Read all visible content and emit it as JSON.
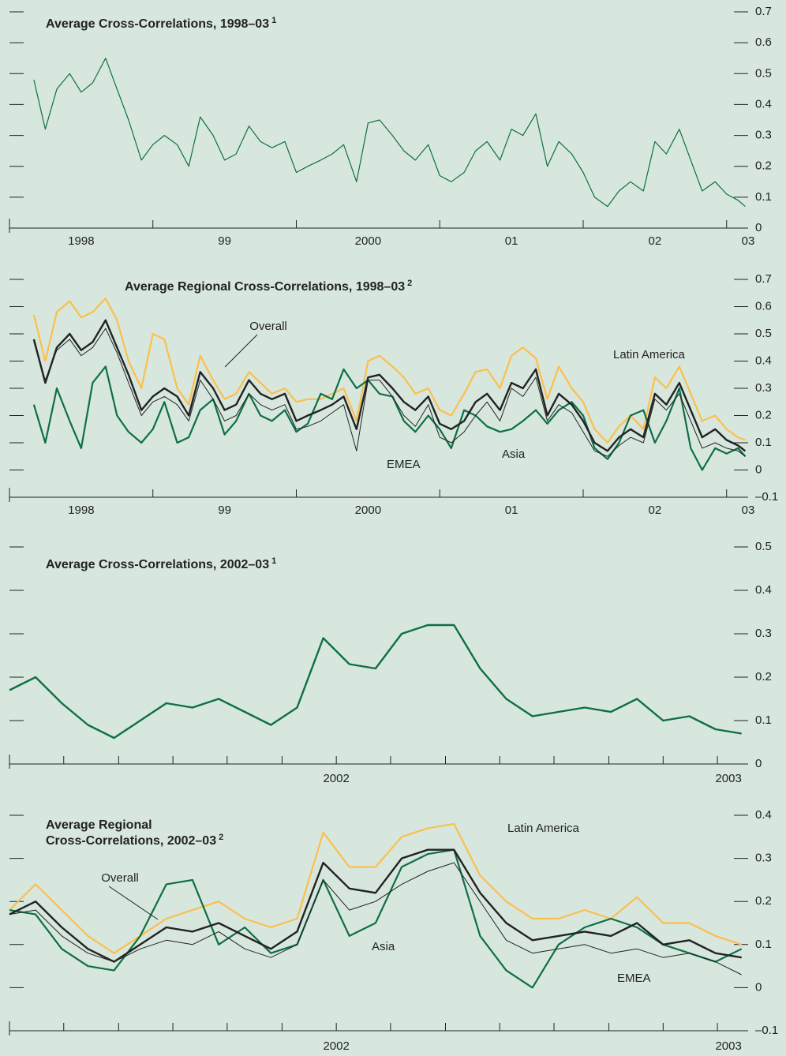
{
  "chart_data": [
    {
      "type": "line",
      "title": "Average Cross-Correlations, 1998–03",
      "title_note": "1",
      "x": [
        1998.17,
        1998.25,
        1998.33,
        1998.42,
        1998.5,
        1998.58,
        1998.67,
        1998.75,
        1998.83,
        1998.92,
        1999,
        1999.08,
        1999.17,
        1999.25,
        1999.33,
        1999.42,
        1999.5,
        1999.58,
        1999.67,
        1999.75,
        1999.83,
        1999.92,
        2000,
        2000.08,
        2000.17,
        2000.25,
        2000.33,
        2000.42,
        2000.5,
        2000.58,
        2000.67,
        2000.75,
        2000.83,
        2000.92,
        2001,
        2001.08,
        2001.17,
        2001.25,
        2001.33,
        2001.42,
        2001.5,
        2001.58,
        2001.67,
        2001.75,
        2001.83,
        2001.92,
        2002,
        2002.08,
        2002.17,
        2002.25,
        2002.33,
        2002.42,
        2002.5,
        2002.58,
        2002.67,
        2002.75,
        2002.83,
        2002.92,
        2003,
        2003.08,
        2003.13
      ],
      "series": [
        {
          "color": "#0e6f45",
          "width": 1.2,
          "values": [
            0.48,
            0.32,
            0.45,
            0.5,
            0.44,
            0.47,
            0.55,
            0.45,
            0.35,
            0.22,
            0.27,
            0.3,
            0.27,
            0.2,
            0.36,
            0.3,
            0.22,
            0.24,
            0.33,
            0.28,
            0.26,
            0.28,
            0.18,
            0.2,
            0.22,
            0.24,
            0.27,
            0.15,
            0.34,
            0.35,
            0.3,
            0.25,
            0.22,
            0.27,
            0.17,
            0.15,
            0.18,
            0.25,
            0.28,
            0.22,
            0.32,
            0.3,
            0.37,
            0.2,
            0.28,
            0.24,
            0.18,
            0.1,
            0.07,
            0.12,
            0.15,
            0.12,
            0.28,
            0.24,
            0.32,
            0.22,
            0.12,
            0.15,
            0.11,
            0.09,
            0.07
          ]
        }
      ],
      "xlim": [
        1998,
        2003.15
      ],
      "xticks": [
        1998,
        1999,
        2000,
        2001,
        2002,
        2003
      ],
      "xlabels": [
        {
          "value": 1998.5,
          "label": "1998"
        },
        {
          "value": 1999.5,
          "label": "99"
        },
        {
          "value": 2000.5,
          "label": "2000"
        },
        {
          "value": 2001.5,
          "label": "01"
        },
        {
          "value": 2002.5,
          "label": "02"
        },
        {
          "value": 2003.15,
          "label": "03"
        }
      ],
      "ylim": [
        0,
        0.7
      ],
      "yticks": [
        0,
        0.1,
        0.2,
        0.3,
        0.4,
        0.5,
        0.6,
        0.7
      ]
    },
    {
      "type": "line",
      "title": "Average Regional Cross-Correlations, 1998–03",
      "title_note": "2",
      "x": [
        1998.17,
        1998.25,
        1998.33,
        1998.42,
        1998.5,
        1998.58,
        1998.67,
        1998.75,
        1998.83,
        1998.92,
        1999,
        1999.08,
        1999.17,
        1999.25,
        1999.33,
        1999.42,
        1999.5,
        1999.58,
        1999.67,
        1999.75,
        1999.83,
        1999.92,
        2000,
        2000.08,
        2000.17,
        2000.25,
        2000.33,
        2000.42,
        2000.5,
        2000.58,
        2000.67,
        2000.75,
        2000.83,
        2000.92,
        2001,
        2001.08,
        2001.17,
        2001.25,
        2001.33,
        2001.42,
        2001.5,
        2001.58,
        2001.67,
        2001.75,
        2001.83,
        2001.92,
        2002,
        2002.08,
        2002.17,
        2002.25,
        2002.33,
        2002.42,
        2002.5,
        2002.58,
        2002.67,
        2002.75,
        2002.83,
        2002.92,
        2003,
        2003.08,
        2003.13
      ],
      "series": [
        {
          "name": "Latin America",
          "color": "#fbbf4d",
          "width": 2.2,
          "values": [
            0.57,
            0.4,
            0.58,
            0.62,
            0.56,
            0.58,
            0.63,
            0.55,
            0.4,
            0.3,
            0.5,
            0.48,
            0.3,
            0.24,
            0.42,
            0.33,
            0.26,
            0.28,
            0.36,
            0.32,
            0.28,
            0.3,
            0.25,
            0.26,
            0.26,
            0.28,
            0.3,
            0.18,
            0.4,
            0.42,
            0.38,
            0.34,
            0.28,
            0.3,
            0.22,
            0.2,
            0.28,
            0.36,
            0.37,
            0.3,
            0.42,
            0.45,
            0.41,
            0.26,
            0.38,
            0.3,
            0.25,
            0.15,
            0.1,
            0.16,
            0.2,
            0.15,
            0.34,
            0.3,
            0.38,
            0.28,
            0.18,
            0.2,
            0.15,
            0.12,
            0.11
          ]
        },
        {
          "name": "Asia",
          "color": "#0e6f45",
          "width": 2.2,
          "values": [
            0.24,
            0.1,
            0.3,
            0.18,
            0.08,
            0.32,
            0.38,
            0.2,
            0.14,
            0.1,
            0.15,
            0.25,
            0.1,
            0.12,
            0.22,
            0.26,
            0.13,
            0.18,
            0.28,
            0.2,
            0.18,
            0.22,
            0.14,
            0.17,
            0.28,
            0.26,
            0.37,
            0.3,
            0.33,
            0.28,
            0.27,
            0.18,
            0.14,
            0.2,
            0.15,
            0.08,
            0.22,
            0.2,
            0.16,
            0.14,
            0.15,
            0.18,
            0.22,
            0.17,
            0.22,
            0.25,
            0.2,
            0.08,
            0.04,
            0.1,
            0.2,
            0.22,
            0.1,
            0.18,
            0.3,
            0.08,
            0.0,
            0.08,
            0.06,
            0.08,
            0.05
          ]
        },
        {
          "name": "EMEA",
          "color": "#222222",
          "width": 1,
          "values": [
            0.47,
            0.33,
            0.44,
            0.48,
            0.42,
            0.45,
            0.52,
            0.43,
            0.32,
            0.2,
            0.25,
            0.27,
            0.24,
            0.18,
            0.33,
            0.26,
            0.18,
            0.2,
            0.28,
            0.24,
            0.22,
            0.24,
            0.15,
            0.16,
            0.18,
            0.21,
            0.24,
            0.07,
            0.33,
            0.33,
            0.27,
            0.2,
            0.16,
            0.24,
            0.12,
            0.1,
            0.14,
            0.2,
            0.25,
            0.18,
            0.3,
            0.27,
            0.34,
            0.18,
            0.24,
            0.21,
            0.14,
            0.07,
            0.05,
            0.09,
            0.12,
            0.1,
            0.26,
            0.22,
            0.28,
            0.18,
            0.08,
            0.1,
            0.08,
            0.07,
            0.05
          ]
        },
        {
          "name": "Overall",
          "color": "#222222",
          "width": 2.4,
          "values": [
            0.48,
            0.32,
            0.45,
            0.5,
            0.44,
            0.47,
            0.55,
            0.45,
            0.35,
            0.22,
            0.27,
            0.3,
            0.27,
            0.2,
            0.36,
            0.3,
            0.22,
            0.24,
            0.33,
            0.28,
            0.26,
            0.28,
            0.18,
            0.2,
            0.22,
            0.24,
            0.27,
            0.15,
            0.34,
            0.35,
            0.3,
            0.25,
            0.22,
            0.27,
            0.17,
            0.15,
            0.18,
            0.25,
            0.28,
            0.22,
            0.32,
            0.3,
            0.37,
            0.2,
            0.28,
            0.24,
            0.18,
            0.1,
            0.07,
            0.12,
            0.15,
            0.12,
            0.28,
            0.24,
            0.32,
            0.22,
            0.12,
            0.15,
            0.11,
            0.09,
            0.07
          ]
        }
      ],
      "xlim": [
        1998,
        2003.15
      ],
      "xticks": [
        1998,
        1999,
        2000,
        2001,
        2002,
        2003
      ],
      "xlabels": [
        {
          "value": 1998.5,
          "label": "1998"
        },
        {
          "value": 1999.5,
          "label": "99"
        },
        {
          "value": 2000.5,
          "label": "2000"
        },
        {
          "value": 2001.5,
          "label": "01"
        },
        {
          "value": 2002.5,
          "label": "02"
        },
        {
          "value": 2003.15,
          "label": "03"
        }
      ],
      "ylim": [
        -0.1,
        0.7
      ],
      "yticks": [
        {
          "value": -0.1,
          "label": "–0.1"
        },
        0,
        0.1,
        0.2,
        0.3,
        0.4,
        0.5,
        0.6,
        0.7
      ]
    },
    {
      "type": "line",
      "title": "Average Cross-Correlations, 2002–03",
      "title_note": "1",
      "x": [
        2002,
        2002.04,
        2002.08,
        2002.12,
        2002.16,
        2002.2,
        2002.24,
        2002.28,
        2002.32,
        2002.36,
        2002.4,
        2002.44,
        2002.48,
        2002.52,
        2002.56,
        2002.6,
        2002.64,
        2002.68,
        2002.72,
        2002.76,
        2002.8,
        2002.84,
        2002.88,
        2002.92,
        2002.96,
        2003,
        2003.04,
        2003.08,
        2003.12
      ],
      "series": [
        {
          "color": "#0e6f45",
          "width": 2.4,
          "values": [
            0.17,
            0.2,
            0.14,
            0.09,
            0.06,
            0.1,
            0.14,
            0.13,
            0.15,
            0.12,
            0.09,
            0.13,
            0.29,
            0.23,
            0.22,
            0.3,
            0.32,
            0.32,
            0.22,
            0.15,
            0.11,
            0.12,
            0.13,
            0.12,
            0.15,
            0.1,
            0.11,
            0.08,
            0.07
          ]
        }
      ],
      "xlim": [
        2002,
        2003.13
      ],
      "xticks": [
        2002,
        2002.083,
        2002.167,
        2002.25,
        2002.333,
        2002.417,
        2002.5,
        2002.583,
        2002.667,
        2002.75,
        2002.833,
        2002.917,
        2003,
        2003.083
      ],
      "xlabels": [
        {
          "value": 2002.5,
          "label": "2002"
        },
        {
          "value": 2003.1,
          "label": "2003"
        }
      ],
      "ylim": [
        0,
        0.5
      ],
      "yticks": [
        0,
        0.1,
        0.2,
        0.3,
        0.4,
        0.5
      ]
    },
    {
      "type": "line",
      "title_lines": [
        "Average Regional",
        "Cross-Correlations, 2002–03"
      ],
      "title_note": "2",
      "x": [
        2002,
        2002.04,
        2002.08,
        2002.12,
        2002.16,
        2002.2,
        2002.24,
        2002.28,
        2002.32,
        2002.36,
        2002.4,
        2002.44,
        2002.48,
        2002.52,
        2002.56,
        2002.6,
        2002.64,
        2002.68,
        2002.72,
        2002.76,
        2002.8,
        2002.84,
        2002.88,
        2002.92,
        2002.96,
        2003,
        2003.04,
        2003.08,
        2003.12
      ],
      "series": [
        {
          "name": "Latin America",
          "color": "#fbbf4d",
          "width": 2.2,
          "values": [
            0.18,
            0.24,
            0.18,
            0.12,
            0.08,
            0.12,
            0.16,
            0.18,
            0.2,
            0.16,
            0.14,
            0.16,
            0.36,
            0.28,
            0.28,
            0.35,
            0.37,
            0.38,
            0.26,
            0.2,
            0.16,
            0.16,
            0.18,
            0.16,
            0.21,
            0.15,
            0.15,
            0.12,
            0.1
          ]
        },
        {
          "name": "Asia",
          "color": "#0e6f45",
          "width": 2.2,
          "values": [
            0.18,
            0.17,
            0.09,
            0.05,
            0.04,
            0.12,
            0.24,
            0.25,
            0.1,
            0.14,
            0.08,
            0.1,
            0.25,
            0.12,
            0.15,
            0.28,
            0.31,
            0.32,
            0.12,
            0.04,
            0.0,
            0.1,
            0.14,
            0.16,
            0.14,
            0.1,
            0.08,
            0.06,
            0.09
          ]
        },
        {
          "name": "EMEA",
          "color": "#222222",
          "width": 1,
          "values": [
            0.17,
            0.18,
            0.12,
            0.08,
            0.06,
            0.09,
            0.11,
            0.1,
            0.13,
            0.09,
            0.07,
            0.1,
            0.25,
            0.18,
            0.2,
            0.24,
            0.27,
            0.29,
            0.2,
            0.11,
            0.08,
            0.09,
            0.1,
            0.08,
            0.09,
            0.07,
            0.08,
            0.06,
            0.03
          ]
        },
        {
          "name": "Overall",
          "color": "#222222",
          "width": 2.4,
          "values": [
            0.17,
            0.2,
            0.14,
            0.09,
            0.06,
            0.1,
            0.14,
            0.13,
            0.15,
            0.12,
            0.09,
            0.13,
            0.29,
            0.23,
            0.22,
            0.3,
            0.32,
            0.32,
            0.22,
            0.15,
            0.11,
            0.12,
            0.13,
            0.12,
            0.15,
            0.1,
            0.11,
            0.08,
            0.07
          ]
        }
      ],
      "xlim": [
        2002,
        2003.13
      ],
      "xticks": [
        2002,
        2002.083,
        2002.167,
        2002.25,
        2002.333,
        2002.417,
        2002.5,
        2002.583,
        2002.667,
        2002.75,
        2002.833,
        2002.917,
        2003,
        2003.083
      ],
      "xlabels": [
        {
          "value": 2002.5,
          "label": "2002"
        },
        {
          "value": 2003.1,
          "label": "2003"
        }
      ],
      "ylim": [
        -0.1,
        0.4
      ],
      "yticks": [
        {
          "value": -0.1,
          "label": "–0.1"
        },
        0,
        0.1,
        0.2,
        0.3,
        0.4
      ]
    }
  ]
}
